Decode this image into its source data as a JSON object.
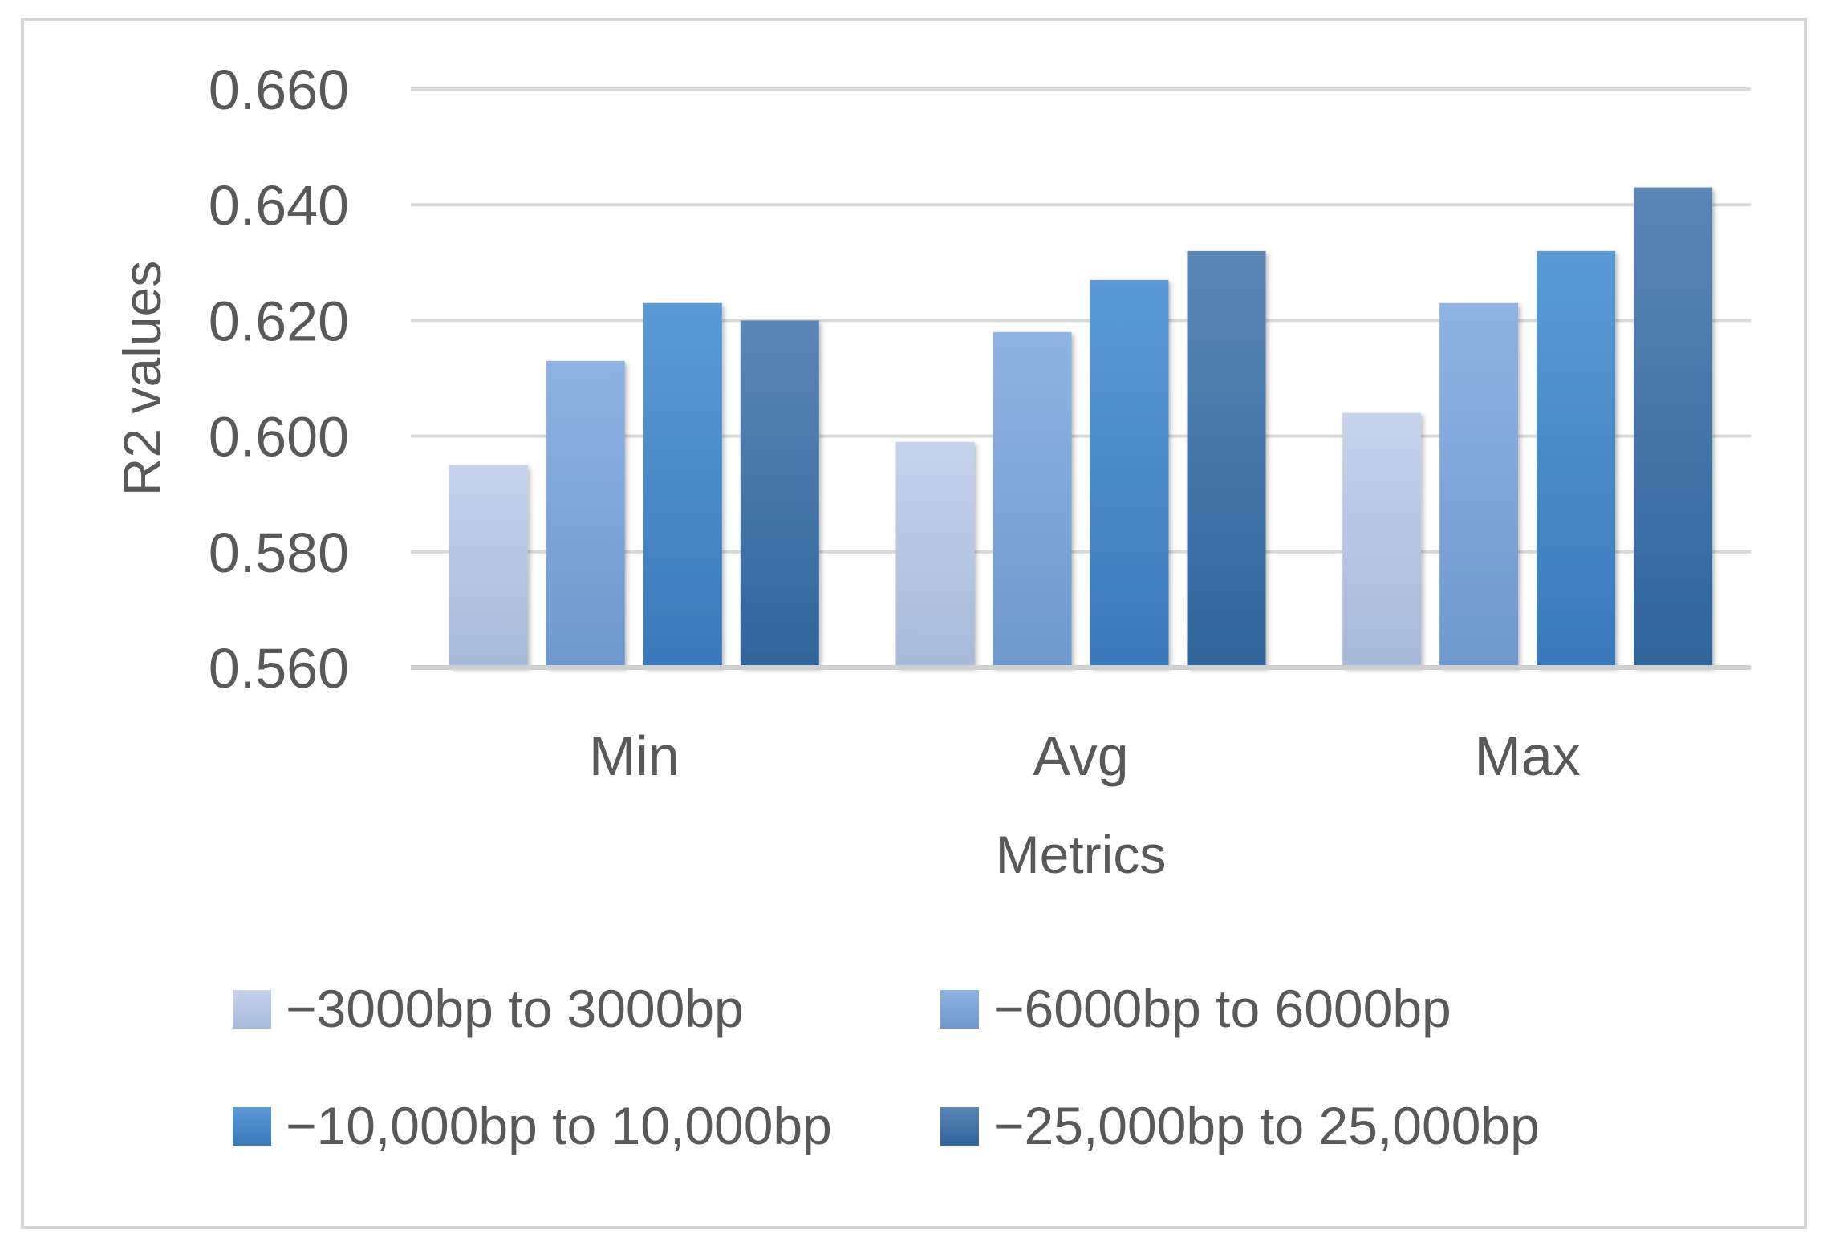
{
  "chart_data": {
    "type": "bar",
    "title": "",
    "xlabel": "Metrics",
    "ylabel": "R2 values",
    "categories": [
      "Min",
      "Avg",
      "Max"
    ],
    "ylim": [
      0.56,
      0.66
    ],
    "yticks": [
      "0.560",
      "0.580",
      "0.600",
      "0.620",
      "0.640",
      "0.660"
    ],
    "ytick_values": [
      0.56,
      0.58,
      0.6,
      0.62,
      0.64,
      0.66
    ],
    "grid": true,
    "legend_position": "bottom",
    "series": [
      {
        "name": "−3000bp to 3000bp",
        "values": [
          0.595,
          0.599,
          0.604
        ],
        "color_top": "#c5d3ec",
        "color_bottom": "#a7b9da"
      },
      {
        "name": "−6000bp to 6000bp",
        "values": [
          0.613,
          0.618,
          0.623
        ],
        "color_top": "#8fb4e3",
        "color_bottom": "#6e98cd"
      },
      {
        "name": "−10,000bp to 10,000bp",
        "values": [
          0.623,
          0.627,
          0.632
        ],
        "color_top": "#5b9bd5",
        "color_bottom": "#3a78ba"
      },
      {
        "name": "−25,000bp to 25,000bp",
        "values": [
          0.62,
          0.632,
          0.643
        ],
        "color_top": "#5b86b5",
        "color_bottom": "#2f659a"
      }
    ]
  }
}
